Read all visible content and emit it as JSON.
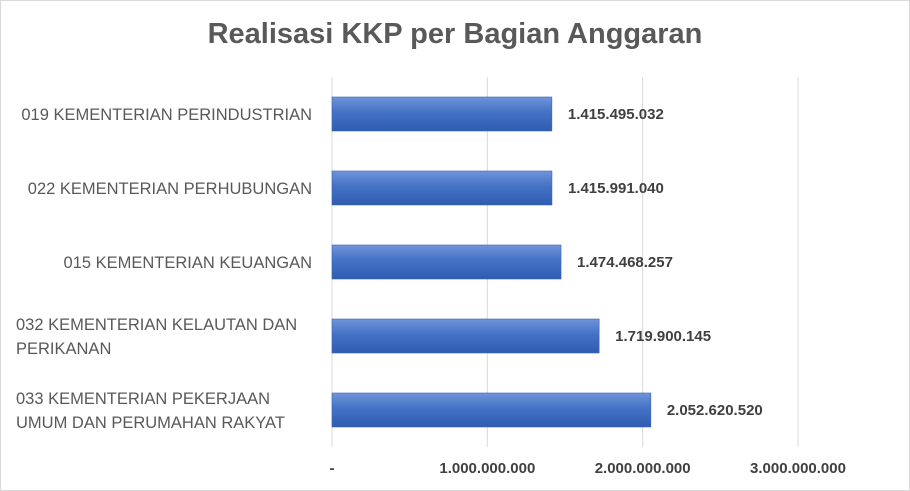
{
  "chart_data": {
    "type": "bar",
    "orientation": "horizontal",
    "title": "Realisasi KKP per Bagian Anggaran",
    "categories": [
      [
        "019 KEMENTERIAN PERINDUSTRIAN"
      ],
      [
        "022 KEMENTERIAN PERHUBUNGAN"
      ],
      [
        "015 KEMENTERIAN KEUANGAN"
      ],
      [
        "032 KEMENTERIAN KELAUTAN DAN",
        "PERIKANAN"
      ],
      [
        "033 KEMENTERIAN PEKERJAAN",
        "UMUM DAN PERUMAHAN RAKYAT"
      ]
    ],
    "values": [
      1415495032,
      1415991040,
      1474468257,
      1719900145,
      2052620520
    ],
    "value_labels": [
      "1.415.495.032",
      "1.415.991.040",
      "1.474.468.257",
      "1.719.900.145",
      "2.052.620.520"
    ],
    "xlim": [
      0,
      3000000000
    ],
    "ticks": [
      0,
      1000000000,
      2000000000,
      3000000000
    ],
    "tick_labels": [
      "-",
      "1.000.000.000",
      "2.000.000.000",
      "3.000.000.000"
    ],
    "grid": true,
    "bar_color": "#4472c4"
  }
}
